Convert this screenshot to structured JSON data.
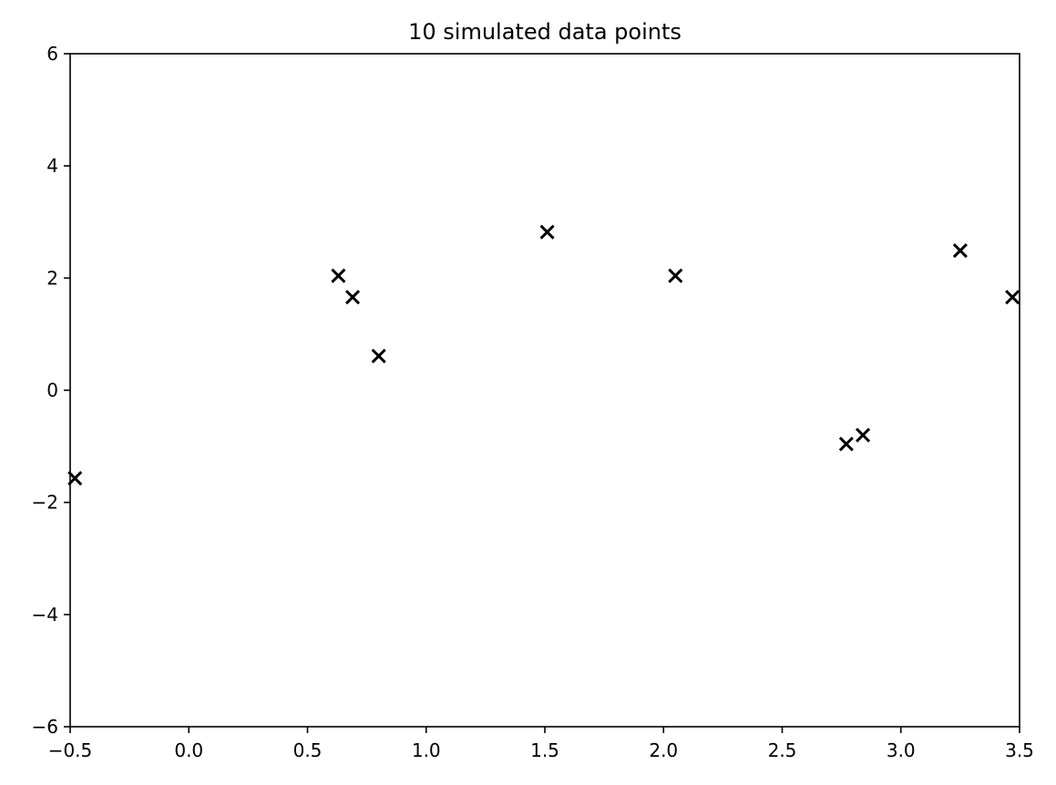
{
  "chart_data": {
    "type": "scatter",
    "title": "10 simulated data points",
    "xlabel": "",
    "ylabel": "",
    "xlim": [
      -0.5,
      3.5
    ],
    "ylim": [
      -6,
      6
    ],
    "grid": false,
    "marker": "x",
    "marker_color": "#000000",
    "x_ticks": [
      -0.5,
      0.0,
      0.5,
      1.0,
      1.5,
      2.0,
      2.5,
      3.0,
      3.5
    ],
    "x_tick_labels": [
      "−0.5",
      "0.0",
      "0.5",
      "1.0",
      "1.5",
      "2.0",
      "2.5",
      "3.0",
      "3.5"
    ],
    "y_ticks": [
      -6,
      -4,
      -2,
      0,
      2,
      4,
      6
    ],
    "y_tick_labels": [
      "−6",
      "−4",
      "−2",
      "0",
      "2",
      "4",
      "6"
    ],
    "points": [
      {
        "x": -0.48,
        "y": -1.57
      },
      {
        "x": 0.63,
        "y": 2.04
      },
      {
        "x": 0.69,
        "y": 1.66
      },
      {
        "x": 0.8,
        "y": 0.61
      },
      {
        "x": 1.51,
        "y": 2.82
      },
      {
        "x": 2.05,
        "y": 2.04
      },
      {
        "x": 2.77,
        "y": -0.96
      },
      {
        "x": 2.84,
        "y": -0.8
      },
      {
        "x": 3.25,
        "y": 2.49
      },
      {
        "x": 3.47,
        "y": 1.66
      }
    ]
  }
}
